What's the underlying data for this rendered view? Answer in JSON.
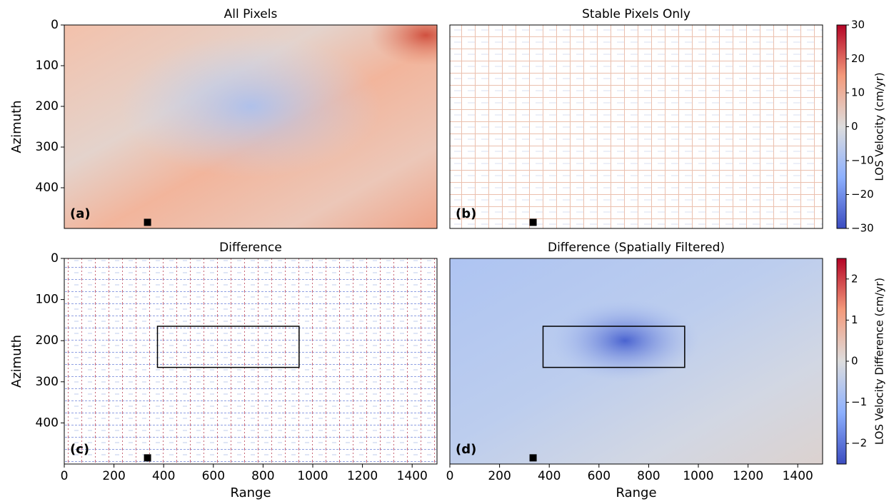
{
  "chart_data": [
    {
      "type": "image",
      "title": "All Pixels",
      "ylabel": "Azimuth",
      "panel_label": "(a)",
      "xlim": [
        0,
        1500
      ],
      "ylim": [
        500,
        0
      ],
      "yticks": [
        0,
        100,
        200,
        300,
        400
      ],
      "marker": {
        "x": 335,
        "y": 485
      }
    },
    {
      "type": "image",
      "title": "Stable Pixels Only",
      "panel_label": "(b)",
      "xlim": [
        0,
        1500
      ],
      "ylim": [
        500,
        0
      ],
      "marker": {
        "x": 335,
        "y": 485
      },
      "colorbar": {
        "label": "LOS Velocity (cm/yr)",
        "lim": [
          -30,
          30
        ],
        "ticks": [
          {
            "value": -30,
            "label": "−30"
          },
          {
            "value": -20,
            "label": "−20"
          },
          {
            "value": -10,
            "label": "−10"
          },
          0,
          10,
          20,
          30
        ]
      }
    },
    {
      "type": "image",
      "title": "Difference",
      "xlabel": "Range",
      "ylabel": "Azimuth",
      "panel_label": "(c)",
      "xlim": [
        0,
        1500
      ],
      "ylim": [
        500,
        0
      ],
      "yticks": [
        0,
        100,
        200,
        300,
        400
      ],
      "xticks": [
        0,
        200,
        400,
        600,
        800,
        1000,
        1200,
        1400
      ],
      "box": {
        "x": [
          375,
          945
        ],
        "y": [
          165,
          265
        ]
      },
      "marker": {
        "x": 335,
        "y": 485
      }
    },
    {
      "type": "image",
      "title": "Difference (Spatially Filtered)",
      "xlabel": "Range",
      "panel_label": "(d)",
      "xlim": [
        0,
        1500
      ],
      "ylim": [
        500,
        0
      ],
      "xticks": [
        0,
        200,
        400,
        600,
        800,
        1000,
        1200,
        1400
      ],
      "box": {
        "x": [
          375,
          945
        ],
        "y": [
          165,
          265
        ]
      },
      "marker": {
        "x": 335,
        "y": 485
      },
      "colorbar": {
        "label": "LOS Velocity Difference (cm/yr)",
        "lim": [
          -2.5,
          2.5
        ],
        "ticks": [
          {
            "value": -2,
            "label": "−2"
          },
          {
            "value": -1,
            "label": "−1"
          },
          0,
          1,
          2
        ]
      }
    }
  ]
}
